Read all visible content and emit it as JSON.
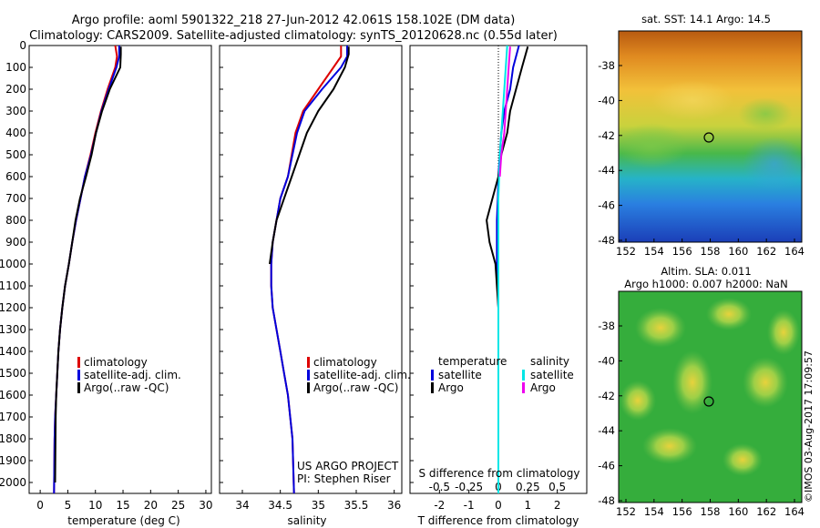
{
  "header": {
    "line1": "Argo profile: aoml 5901322_218 27-Jun-2012 42.061S 158.102E (DM data)",
    "line2": "Climatology: CARS2009. Satellite-adjusted climatology: synTS_20120628.nc (0.55d later)"
  },
  "colors": {
    "climatology": "#dd0000",
    "satellite": "#0000dd",
    "argo": "#000000",
    "salinity_satellite": "#00e6e6",
    "salinity_argo": "#ee00ee"
  },
  "panels": {
    "temperature": {
      "xlabel": "temperature (deg C)",
      "legend": [
        "climatology",
        "satellite-adj. clim.",
        "Argo(..raw -QC)"
      ]
    },
    "salinity": {
      "xlabel": "salinity",
      "legend": [
        "climatology",
        "satellite-adj. clim.",
        "Argo(..raw -QC)"
      ],
      "credit1": "US ARGO PROJECT",
      "credit2": "PI: Stephen Riser"
    },
    "difference": {
      "xlabel": "T difference from climatology",
      "slabel": "S difference from climatology",
      "legend_head_t": "temperature",
      "legend_head_s": "salinity",
      "legend_t": [
        "satellite",
        "Argo"
      ],
      "legend_s": [
        "satellite",
        "Argo"
      ]
    }
  },
  "maps": {
    "sst": {
      "title": "sat. SST: 14.1  Argo: 14.5",
      "xticks": [
        "152",
        "154",
        "156",
        "158",
        "160",
        "162",
        "164"
      ],
      "yticks": [
        "-38",
        "-40",
        "-42",
        "-44",
        "-46",
        "-48"
      ],
      "point_label": "42.061S 158.102E"
    },
    "sla": {
      "title1": "Altim. SLA: 0.011",
      "title2": "Argo h1000: 0.007 h2000: NaN",
      "xticks": [
        "152",
        "154",
        "156",
        "158",
        "160",
        "162",
        "164"
      ],
      "yticks": [
        "-38",
        "-40",
        "-42",
        "-44",
        "-46",
        "-48"
      ]
    }
  },
  "watermark": "©IMOS 03-Aug-2017 17:09:57",
  "chart_data": [
    {
      "type": "line",
      "panel": "temperature",
      "xlabel": "temperature (deg C)",
      "ylabel": "",
      "xlim": [
        -2,
        31
      ],
      "ylim": [
        2050,
        0
      ],
      "xticks": [
        0,
        5,
        10,
        15,
        20,
        25,
        30
      ],
      "yticks": [
        0,
        100,
        200,
        300,
        400,
        500,
        600,
        700,
        800,
        900,
        1000,
        1100,
        1200,
        1300,
        1400,
        1500,
        1600,
        1700,
        1800,
        1900,
        2000
      ],
      "series": [
        {
          "name": "climatology",
          "x": [
            13.6,
            13.9,
            13.6,
            12.2,
            11.0,
            10.0,
            9.1,
            8.1,
            7.3,
            6.5,
            5.8,
            5.2,
            4.5,
            4.0,
            3.6,
            3.3,
            3.1,
            2.9,
            2.7,
            2.6,
            2.5
          ],
          "depth": [
            0,
            50,
            100,
            200,
            300,
            400,
            500,
            600,
            700,
            800,
            900,
            1000,
            1100,
            1200,
            1300,
            1400,
            1500,
            1600,
            1700,
            1800,
            2050
          ]
        },
        {
          "name": "satellite-adj. clim.",
          "x": [
            14.3,
            14.3,
            13.8,
            12.4,
            11.1,
            10.1,
            9.2,
            8.1,
            7.3,
            6.5,
            5.8,
            5.2,
            4.5,
            4.0,
            3.6,
            3.3,
            3.1,
            2.9,
            2.7,
            2.6,
            2.5
          ],
          "depth": [
            0,
            50,
            100,
            200,
            300,
            400,
            500,
            600,
            700,
            800,
            900,
            1000,
            1100,
            1200,
            1300,
            1400,
            1500,
            1600,
            1700,
            1800,
            2050
          ]
        },
        {
          "name": "Argo(..raw -QC)",
          "x": [
            14.6,
            14.6,
            14.5,
            12.6,
            11.2,
            10.1,
            9.3,
            8.3,
            7.2,
            6.4,
            5.8,
            5.2,
            4.5,
            4.0,
            3.6,
            3.3,
            3.1,
            2.9,
            2.8,
            2.7
          ],
          "depth": [
            5,
            40,
            100,
            200,
            300,
            400,
            500,
            600,
            700,
            800,
            900,
            1000,
            1100,
            1200,
            1300,
            1400,
            1500,
            1600,
            1700,
            2000
          ]
        }
      ]
    },
    {
      "type": "line",
      "panel": "salinity",
      "xlabel": "salinity",
      "ylabel": "",
      "xlim": [
        33.7,
        36.1
      ],
      "ylim": [
        2050,
        0
      ],
      "xticks": [
        34,
        34.5,
        35,
        35.5,
        36
      ],
      "series": [
        {
          "name": "climatology",
          "x": [
            35.3,
            35.3,
            35.2,
            35.0,
            34.8,
            34.7,
            34.65,
            34.6,
            34.5,
            34.45,
            34.4,
            34.38,
            34.38,
            34.4,
            34.45,
            34.5,
            34.55,
            34.6,
            34.63,
            34.66,
            34.68
          ],
          "depth": [
            0,
            50,
            100,
            200,
            300,
            400,
            500,
            600,
            700,
            800,
            900,
            1000,
            1100,
            1200,
            1300,
            1400,
            1500,
            1600,
            1700,
            1800,
            2050
          ]
        },
        {
          "name": "satellite-adj. clim.",
          "x": [
            35.38,
            35.38,
            35.3,
            35.05,
            34.82,
            34.72,
            34.66,
            34.6,
            34.5,
            34.45,
            34.4,
            34.38,
            34.38,
            34.4,
            34.45,
            34.5,
            34.55,
            34.6,
            34.63,
            34.66,
            34.68
          ],
          "depth": [
            0,
            50,
            100,
            200,
            300,
            400,
            500,
            600,
            700,
            800,
            900,
            1000,
            1100,
            1200,
            1300,
            1400,
            1500,
            1600,
            1700,
            1800,
            2050
          ]
        },
        {
          "name": "Argo(..raw -QC)",
          "x": [
            35.4,
            35.4,
            35.35,
            35.2,
            35.0,
            34.85,
            34.75,
            34.65,
            34.55,
            34.45,
            34.4,
            34.36
          ],
          "depth": [
            5,
            40,
            100,
            200,
            300,
            400,
            500,
            600,
            700,
            800,
            900,
            1000
          ]
        }
      ]
    },
    {
      "type": "line",
      "panel": "difference",
      "xlabel": "T difference from climatology",
      "ylabel": "",
      "xlim": [
        -3,
        3
      ],
      "ylim": [
        2050,
        0
      ],
      "xticks": [
        -2,
        -1,
        0,
        1,
        2
      ],
      "secondary_xticks": [
        "-0.5",
        "-0.25",
        "0",
        "0.25",
        "0.5"
      ],
      "series": [
        {
          "name": "temperature satellite",
          "x": [
            0.7,
            0.5,
            0.4,
            0.2,
            0.1,
            0.05,
            0.0,
            -0.02,
            -0.05,
            -0.05,
            -0.05,
            0.0,
            0.0
          ],
          "depth": [
            0,
            100,
            200,
            300,
            400,
            500,
            600,
            700,
            800,
            900,
            1000,
            1200,
            2050
          ]
        },
        {
          "name": "temperature Argo",
          "x": [
            1.0,
            0.8,
            0.6,
            0.4,
            0.3,
            0.1,
            0.0,
            -0.2,
            -0.4,
            -0.3,
            -0.1,
            0.0
          ],
          "depth": [
            5,
            100,
            200,
            300,
            400,
            500,
            600,
            700,
            800,
            900,
            1000,
            1200
          ]
        },
        {
          "name": "salinity satellite",
          "x": [
            0.3,
            0.25,
            0.2,
            0.15,
            0.1,
            0.05,
            0.0,
            0.0,
            0.0
          ],
          "depth": [
            0,
            100,
            200,
            300,
            400,
            500,
            700,
            1000,
            2050
          ]
        },
        {
          "name": "salinity Argo",
          "x": [
            0.4,
            0.35,
            0.3,
            0.25,
            0.2,
            0.1,
            0.05
          ],
          "depth": [
            5,
            100,
            200,
            300,
            400,
            500,
            600
          ]
        }
      ]
    }
  ]
}
